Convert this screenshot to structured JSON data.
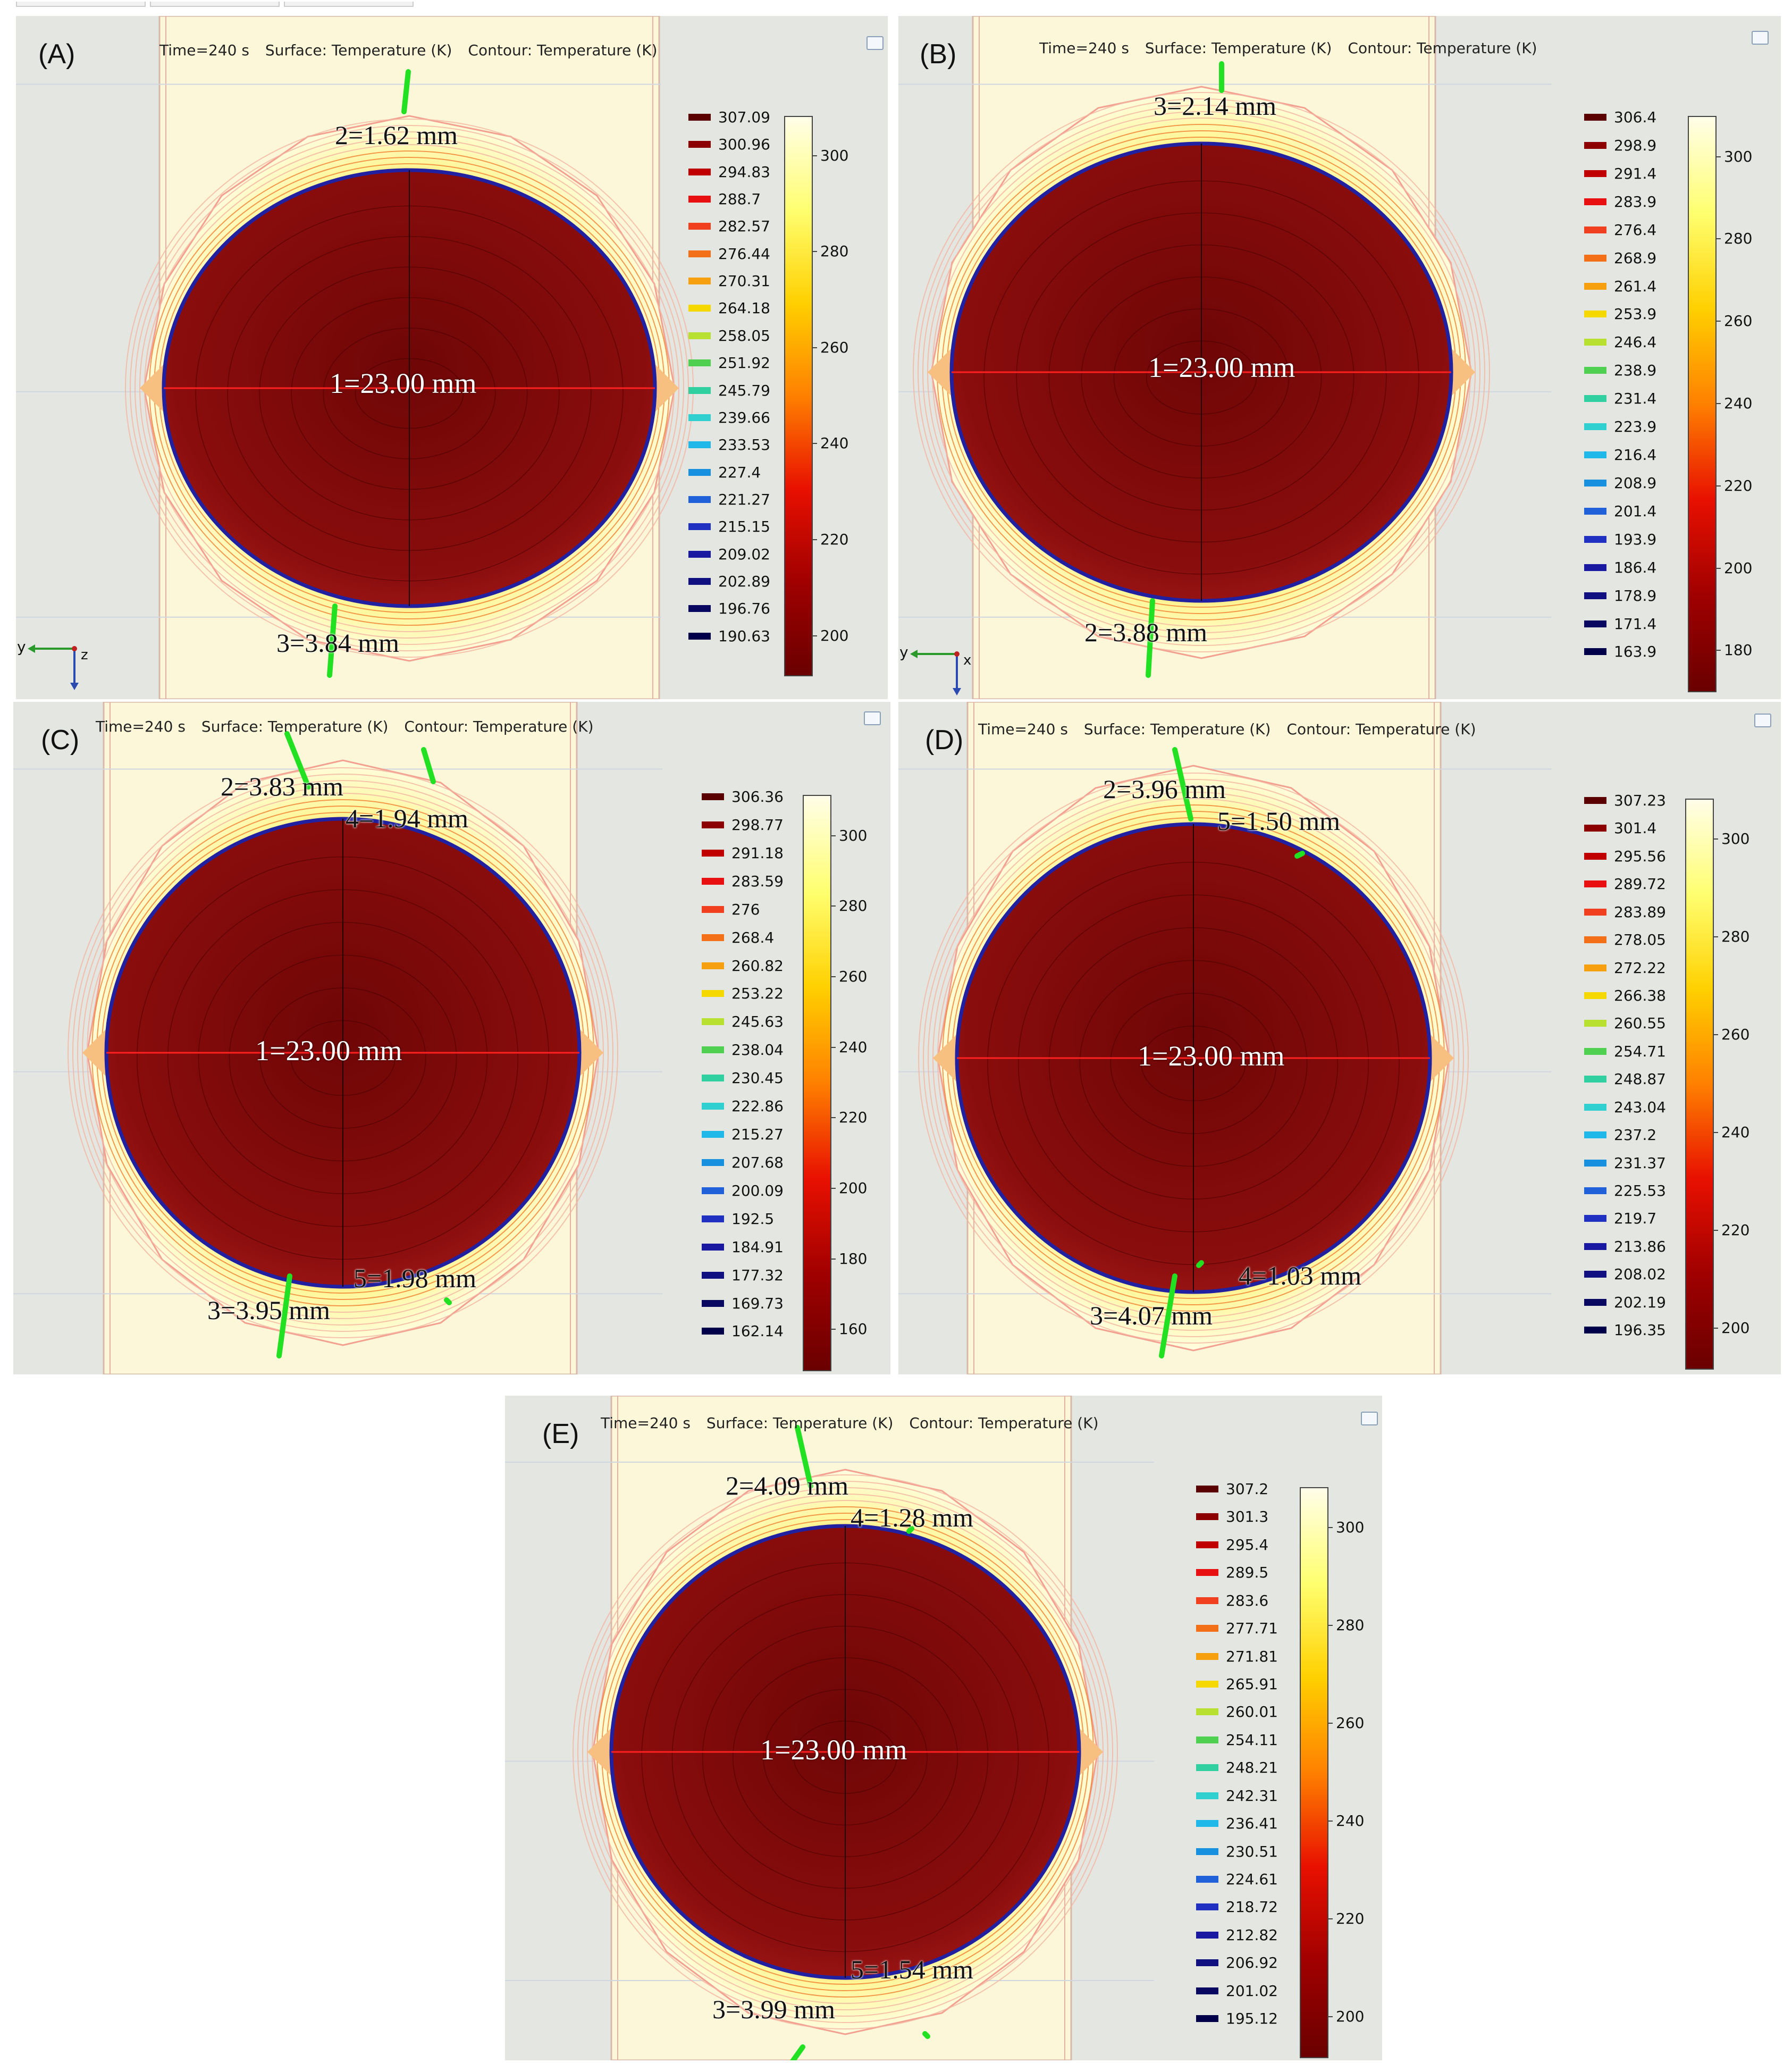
{
  "header": {
    "time": "Time=240 s",
    "surface": "Surface: Temperature (K)",
    "contour": "Contour: Temperature (K)"
  },
  "colors": {
    "legend_scale": [
      "#5b0000",
      "#8c0000",
      "#c00000",
      "#e81010",
      "#f04020",
      "#f47018",
      "#f6a010",
      "#f5d800",
      "#b8e030",
      "#50d050",
      "#30d0a0",
      "#30d0d0",
      "#20b8e8",
      "#1890e0",
      "#2060d8",
      "#2030c0",
      "#1818a0",
      "#101080",
      "#080860",
      "#00004a",
      "#000038"
    ],
    "cbar_stops": [
      "#fffde8",
      "#ffff70",
      "#ffd000",
      "#ff8000",
      "#e81000",
      "#a00000",
      "#6a0000"
    ],
    "disc": "#8a0d0d",
    "halo": "#fff79a"
  },
  "panels": [
    {
      "letter": "(A)",
      "measurements": [
        "1=23.00 mm",
        "2=1.62 mm",
        "3=3.84 mm"
      ],
      "legend_levels": [
        "307.09",
        "300.96",
        "294.83",
        "288.7",
        "282.57",
        "276.44",
        "270.31",
        "264.18",
        "258.05",
        "251.92",
        "245.79",
        "239.66",
        "233.53",
        "227.4",
        "221.27",
        "215.15",
        "209.02",
        "202.89",
        "196.76",
        "190.63"
      ],
      "colorbar_ticks": [
        "300",
        "280",
        "260",
        "240",
        "220",
        "200"
      ],
      "axis_labels": [
        "y",
        "z"
      ]
    },
    {
      "letter": "(B)",
      "measurements": [
        "1=23.00 mm",
        "3=2.14 mm",
        "2=3.88 mm"
      ],
      "legend_levels": [
        "306.4",
        "298.9",
        "291.4",
        "283.9",
        "276.4",
        "268.9",
        "261.4",
        "253.9",
        "246.4",
        "238.9",
        "231.4",
        "223.9",
        "216.4",
        "208.9",
        "201.4",
        "193.9",
        "186.4",
        "178.9",
        "171.4",
        "163.9"
      ],
      "colorbar_ticks": [
        "300",
        "280",
        "260",
        "240",
        "220",
        "200",
        "180"
      ],
      "axis_labels": [
        "y",
        "x"
      ]
    },
    {
      "letter": "(C)",
      "measurements": [
        "1=23.00 mm",
        "2=3.83 mm",
        "4=1.94 mm",
        "3=3.95 mm",
        "5=1.98 mm"
      ],
      "legend_levels": [
        "306.36",
        "298.77",
        "291.18",
        "283.59",
        "276",
        "268.4",
        "260.82",
        "253.22",
        "245.63",
        "238.04",
        "230.45",
        "222.86",
        "215.27",
        "207.68",
        "200.09",
        "192.5",
        "184.91",
        "177.32",
        "169.73",
        "162.14"
      ],
      "colorbar_ticks": [
        "300",
        "280",
        "260",
        "240",
        "220",
        "200",
        "180",
        "160"
      ],
      "axis_labels": []
    },
    {
      "letter": "(D)",
      "measurements": [
        "1=23.00 mm",
        "2=3.96 mm",
        "5=1.50 mm",
        "3=4.07 mm",
        "4=1.03 mm"
      ],
      "legend_levels": [
        "307.23",
        "301.4",
        "295.56",
        "289.72",
        "283.89",
        "278.05",
        "272.22",
        "266.38",
        "260.55",
        "254.71",
        "248.87",
        "243.04",
        "237.2",
        "231.37",
        "225.53",
        "219.7",
        "213.86",
        "208.02",
        "202.19",
        "196.35"
      ],
      "colorbar_ticks": [
        "300",
        "280",
        "260",
        "240",
        "220",
        "200"
      ],
      "axis_labels": []
    },
    {
      "letter": "(E)",
      "measurements": [
        "1=23.00 mm",
        "2=4.09 mm",
        "4=1.28 mm",
        "3=3.99 mm",
        "5=1.54 mm"
      ],
      "legend_levels": [
        "307.2",
        "301.3",
        "295.4",
        "289.5",
        "283.6",
        "277.71",
        "271.81",
        "265.91",
        "260.01",
        "254.11",
        "248.21",
        "242.31",
        "236.41",
        "230.51",
        "224.61",
        "218.72",
        "212.82",
        "206.92",
        "201.02",
        "195.12"
      ],
      "colorbar_ticks": [
        "300",
        "280",
        "260",
        "240",
        "220",
        "200"
      ],
      "axis_labels": []
    }
  ]
}
